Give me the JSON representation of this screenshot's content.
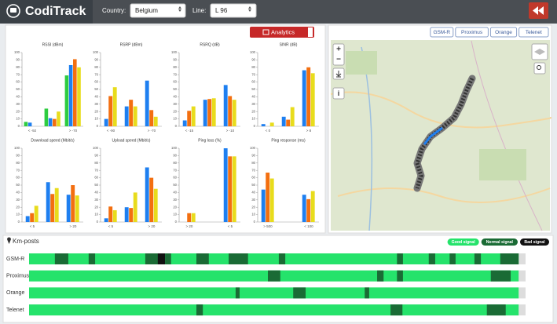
{
  "header": {
    "logo": "CodiTrack",
    "country_label": "Country:",
    "country": "Belgium",
    "line_label": "Line:",
    "line": "L 96"
  },
  "analytics": {
    "button": "Analytics",
    "ylim": [
      0,
      100
    ],
    "yticks": [
      0,
      10,
      20,
      30,
      40,
      50,
      60,
      70,
      80,
      90,
      100
    ],
    "charts": [
      {
        "type": "bar",
        "title": "RSSI (dBm)",
        "categories": [
          "< -92",
          null,
          "> -70"
        ],
        "series": [
          {
            "color": "#2ecc40",
            "values": [
              6,
              24,
              69
            ]
          },
          {
            "color": "#1e7ff0",
            "values": [
              5,
              11,
              83
            ]
          },
          {
            "color": "#f36f10",
            "values": [
              0,
              10,
              91
            ]
          },
          {
            "color": "#e8dc1c",
            "values": [
              0,
              20,
              80
            ]
          }
        ]
      },
      {
        "type": "bar",
        "title": "RSRP (dBm)",
        "categories": [
          "< -90",
          null,
          "> -70"
        ],
        "series": [
          {
            "color": "#1e7ff0",
            "values": [
              10,
              27,
              62
            ]
          },
          {
            "color": "#f36f10",
            "values": [
              41,
              36,
              22
            ]
          },
          {
            "color": "#e8dc1c",
            "values": [
              53,
              27,
              13
            ]
          }
        ]
      },
      {
        "type": "bar",
        "title": "RSRQ (dB)",
        "categories": [
          "< -15",
          null,
          "> -10"
        ],
        "series": [
          {
            "color": "#1e7ff0",
            "values": [
              8,
              36,
              56
            ]
          },
          {
            "color": "#f36f10",
            "values": [
              21,
              37,
              41
            ]
          },
          {
            "color": "#e8dc1c",
            "values": [
              27,
              38,
              36
            ]
          }
        ]
      },
      {
        "type": "bar",
        "title": "SINR (dB)",
        "categories": [
          "< 0",
          null,
          "> 8"
        ],
        "series": [
          {
            "color": "#1e7ff0",
            "values": [
              3,
              13,
              76
            ]
          },
          {
            "color": "#f36f10",
            "values": [
              0,
              9,
              80
            ]
          },
          {
            "color": "#e8dc1c",
            "values": [
              5,
              26,
              72
            ]
          }
        ]
      },
      {
        "type": "bar",
        "title": "Download speed (Mbit/s)",
        "categories": [
          "< 5",
          null,
          "> 20"
        ],
        "series": [
          {
            "color": "#1e7ff0",
            "values": [
              8,
              54,
              37
            ]
          },
          {
            "color": "#f36f10",
            "values": [
              12,
              38,
              50
            ]
          },
          {
            "color": "#e8dc1c",
            "values": [
              22,
              46,
              36
            ]
          }
        ]
      },
      {
        "type": "bar",
        "title": "Upload speed (Mbit/s)",
        "categories": [
          "< 5",
          null,
          "> 20"
        ],
        "series": [
          {
            "color": "#1e7ff0",
            "values": [
              5,
              20,
              74
            ]
          },
          {
            "color": "#f36f10",
            "values": [
              21,
              19,
              60
            ]
          },
          {
            "color": "#e8dc1c",
            "values": [
              16,
              40,
              45
            ]
          }
        ]
      },
      {
        "type": "bar",
        "title": "Ping loss (%)",
        "categories": [
          "> 20",
          null,
          "< 5"
        ],
        "series": [
          {
            "color": "#1e7ff0",
            "values": [
              0,
              0,
              100
            ]
          },
          {
            "color": "#f36f10",
            "values": [
              12,
              0,
              89
            ]
          },
          {
            "color": "#e8dc1c",
            "values": [
              12,
              0,
              89
            ]
          }
        ]
      },
      {
        "type": "bar",
        "title": "Ping response (ms)",
        "categories": [
          "> 500",
          null,
          "< 100"
        ],
        "series": [
          {
            "color": "#1e7ff0",
            "values": [
              44,
              0,
              37
            ]
          },
          {
            "color": "#f36f10",
            "values": [
              67,
              0,
              31
            ]
          },
          {
            "color": "#e8dc1c",
            "values": [
              59,
              0,
              42
            ]
          }
        ]
      }
    ]
  },
  "map": {
    "layers": [
      "GSM-R",
      "Proximus",
      "Orange",
      "Telenet"
    ],
    "zoom_in": "+",
    "zoom_out": "−",
    "info": "i"
  },
  "km_posts": {
    "title": "Km-posts",
    "legend": [
      {
        "label": "Good signal",
        "color": "#25e36b"
      },
      {
        "label": "Normal signal",
        "color": "#1a6b35"
      },
      {
        "label": "Bad signal",
        "color": "#111111"
      }
    ],
    "xlim": [
      0,
      100
    ],
    "track_end": 98.6,
    "rows": [
      {
        "name": "GSM-R",
        "segments": [
          {
            "from": 5.2,
            "to": 7.9,
            "level": 1
          },
          {
            "from": 12.0,
            "to": 13.3,
            "level": 1
          },
          {
            "from": 23.4,
            "to": 25.9,
            "level": 1
          },
          {
            "from": 25.9,
            "to": 27.4,
            "level": 2
          },
          {
            "from": 27.4,
            "to": 28.6,
            "level": 1
          },
          {
            "from": 33.7,
            "to": 36.2,
            "level": 1
          },
          {
            "from": 40.2,
            "to": 44.1,
            "level": 1
          },
          {
            "from": 50.3,
            "to": 51.6,
            "level": 1
          },
          {
            "from": 74.1,
            "to": 75.3,
            "level": 1
          },
          {
            "from": 80.5,
            "to": 81.8,
            "level": 1
          },
          {
            "from": 84.7,
            "to": 85.9,
            "level": 1
          },
          {
            "from": 89.7,
            "to": 91.0,
            "level": 1
          },
          {
            "from": 94.9,
            "to": 98.6,
            "level": 1
          }
        ]
      },
      {
        "name": "Proximus",
        "segments": [
          {
            "from": 48.1,
            "to": 50.6,
            "level": 1
          },
          {
            "from": 70.1,
            "to": 71.4,
            "level": 1
          },
          {
            "from": 74.1,
            "to": 75.3,
            "level": 1
          },
          {
            "from": 93.0,
            "to": 97.0,
            "level": 1
          }
        ]
      },
      {
        "name": "Orange",
        "segments": [
          {
            "from": 41.6,
            "to": 42.4,
            "level": 1
          },
          {
            "from": 53.2,
            "to": 55.7,
            "level": 1
          },
          {
            "from": 67.6,
            "to": 68.5,
            "level": 1
          }
        ]
      },
      {
        "name": "Telenet",
        "segments": [
          {
            "from": 33.7,
            "to": 35.0,
            "level": 1
          },
          {
            "from": 72.8,
            "to": 75.2,
            "level": 1
          },
          {
            "from": 92.2,
            "to": 96.0,
            "level": 1
          }
        ]
      }
    ]
  }
}
